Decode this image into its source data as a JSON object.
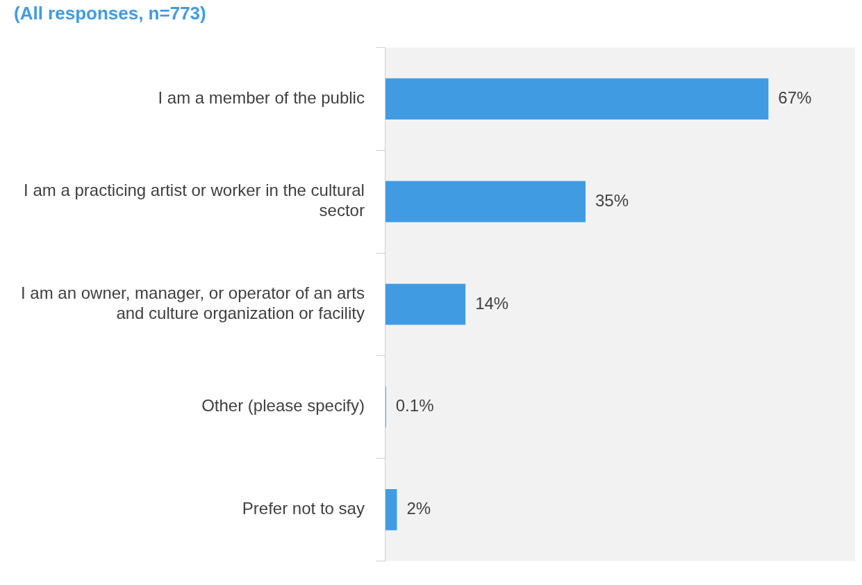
{
  "chart_data": {
    "type": "bar",
    "orientation": "horizontal",
    "title": "(All responses, n=773)",
    "categories": [
      "I am a member of the public",
      "I am a practicing artist or worker in the cultural sector",
      "I am an owner, manager, or operator of an arts and culture organization or facility",
      "Other (please specify)",
      "Prefer not to say"
    ],
    "values": [
      67,
      35,
      14,
      0.1,
      2
    ],
    "value_labels": [
      "67%",
      "35%",
      "14%",
      "0.1%",
      "2%"
    ],
    "color": "#419be3"
  }
}
